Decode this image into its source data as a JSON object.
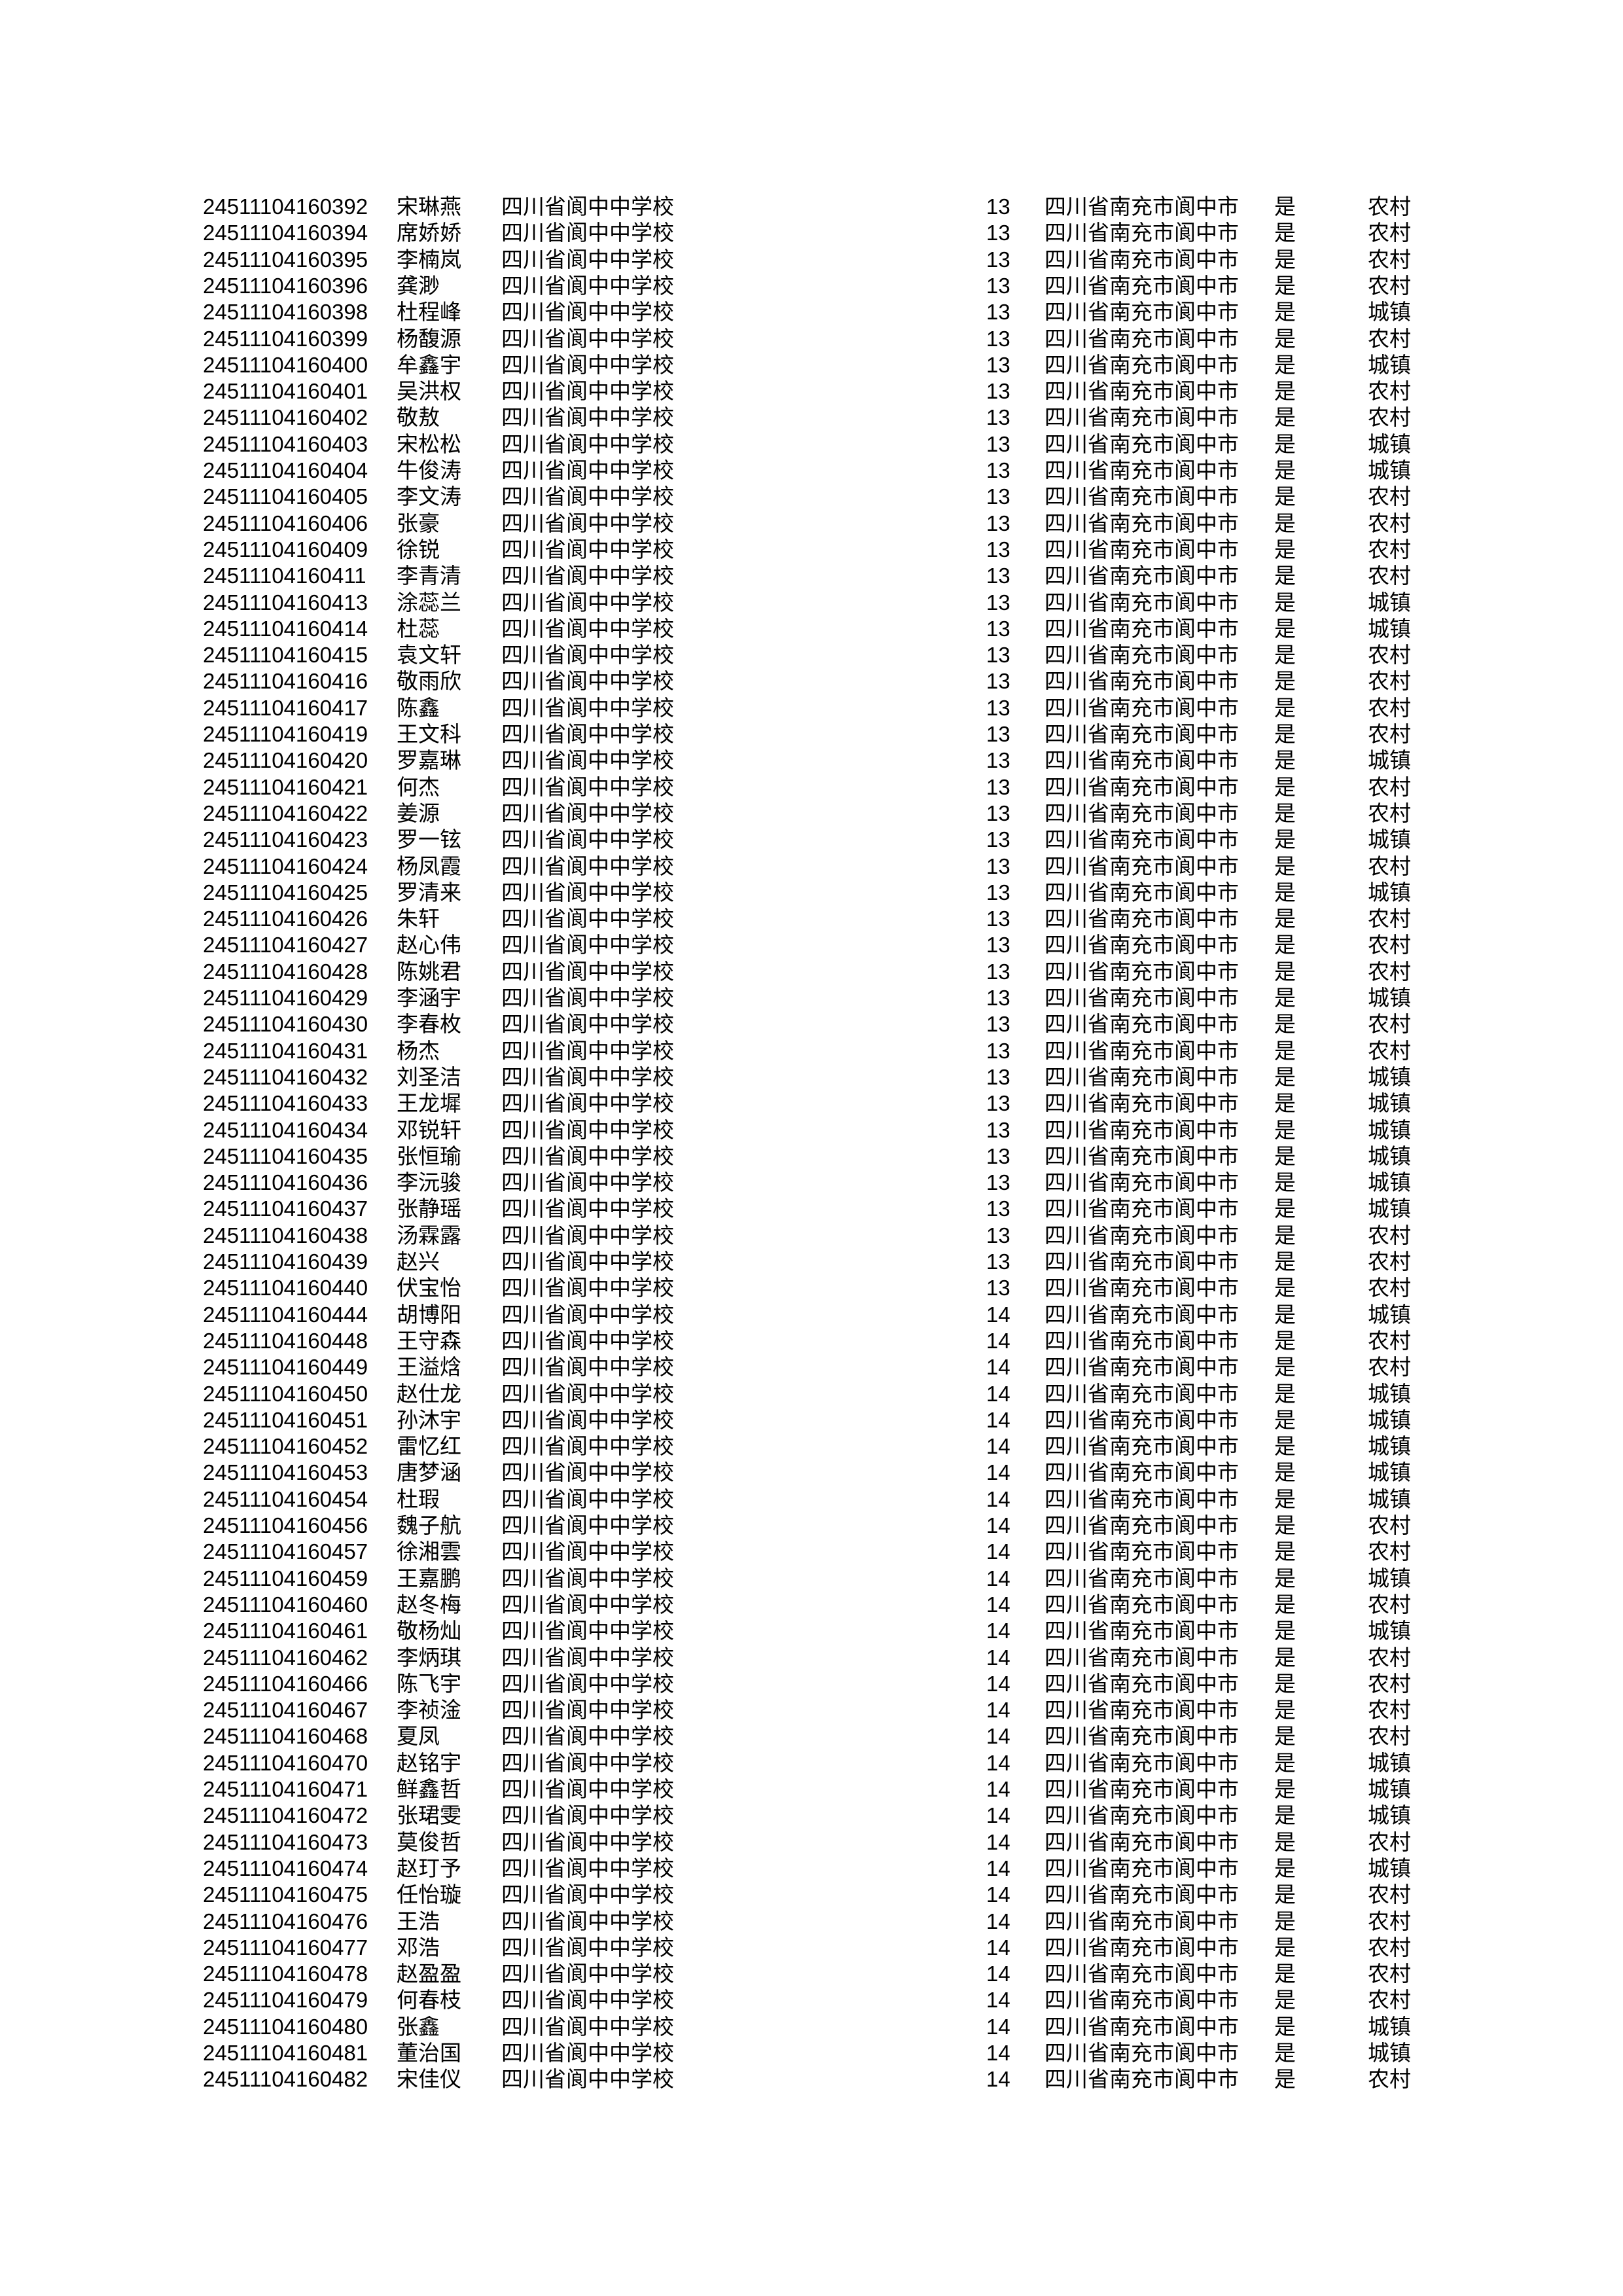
{
  "table": {
    "school": "四川省阆中中学校",
    "region": "四川省南充市阆中市",
    "flag": "是",
    "residence_values": {
      "rural": "农村",
      "urban": "城镇"
    },
    "rows": [
      {
        "id": "24511104160392",
        "name": "宋琳燕",
        "code": "13",
        "res": "农村"
      },
      {
        "id": "24511104160394",
        "name": "席娇娇",
        "code": "13",
        "res": "农村"
      },
      {
        "id": "24511104160395",
        "name": "李楠岚",
        "code": "13",
        "res": "农村"
      },
      {
        "id": "24511104160396",
        "name": "龚渺",
        "code": "13",
        "res": "农村"
      },
      {
        "id": "24511104160398",
        "name": "杜程峰",
        "code": "13",
        "res": "城镇"
      },
      {
        "id": "24511104160399",
        "name": "杨馥源",
        "code": "13",
        "res": "农村"
      },
      {
        "id": "24511104160400",
        "name": "牟鑫宇",
        "code": "13",
        "res": "城镇"
      },
      {
        "id": "24511104160401",
        "name": "吴洪权",
        "code": "13",
        "res": "农村"
      },
      {
        "id": "24511104160402",
        "name": "敬敖",
        "code": "13",
        "res": "农村"
      },
      {
        "id": "24511104160403",
        "name": "宋松松",
        "code": "13",
        "res": "城镇"
      },
      {
        "id": "24511104160404",
        "name": "牛俊涛",
        "code": "13",
        "res": "城镇"
      },
      {
        "id": "24511104160405",
        "name": "李文涛",
        "code": "13",
        "res": "农村"
      },
      {
        "id": "24511104160406",
        "name": "张豪",
        "code": "13",
        "res": "农村"
      },
      {
        "id": "24511104160409",
        "name": "徐锐",
        "code": "13",
        "res": "农村"
      },
      {
        "id": "24511104160411",
        "name": "李青清",
        "code": "13",
        "res": "农村"
      },
      {
        "id": "24511104160413",
        "name": "涂蕊兰",
        "code": "13",
        "res": "城镇"
      },
      {
        "id": "24511104160414",
        "name": "杜蕊",
        "code": "13",
        "res": "城镇"
      },
      {
        "id": "24511104160415",
        "name": "袁文轩",
        "code": "13",
        "res": "农村"
      },
      {
        "id": "24511104160416",
        "name": "敬雨欣",
        "code": "13",
        "res": "农村"
      },
      {
        "id": "24511104160417",
        "name": "陈鑫",
        "code": "13",
        "res": "农村"
      },
      {
        "id": "24511104160419",
        "name": "王文科",
        "code": "13",
        "res": "农村"
      },
      {
        "id": "24511104160420",
        "name": "罗嘉琳",
        "code": "13",
        "res": "城镇"
      },
      {
        "id": "24511104160421",
        "name": "何杰",
        "code": "13",
        "res": "农村"
      },
      {
        "id": "24511104160422",
        "name": "姜源",
        "code": "13",
        "res": "农村"
      },
      {
        "id": "24511104160423",
        "name": "罗一铉",
        "code": "13",
        "res": "城镇"
      },
      {
        "id": "24511104160424",
        "name": "杨凤霞",
        "code": "13",
        "res": "农村"
      },
      {
        "id": "24511104160425",
        "name": "罗清来",
        "code": "13",
        "res": "城镇"
      },
      {
        "id": "24511104160426",
        "name": "朱轩",
        "code": "13",
        "res": "农村"
      },
      {
        "id": "24511104160427",
        "name": "赵心伟",
        "code": "13",
        "res": "农村"
      },
      {
        "id": "24511104160428",
        "name": "陈姚君",
        "code": "13",
        "res": "农村"
      },
      {
        "id": "24511104160429",
        "name": "李涵宇",
        "code": "13",
        "res": "城镇"
      },
      {
        "id": "24511104160430",
        "name": "李春枚",
        "code": "13",
        "res": "农村"
      },
      {
        "id": "24511104160431",
        "name": "杨杰",
        "code": "13",
        "res": "农村"
      },
      {
        "id": "24511104160432",
        "name": "刘圣洁",
        "code": "13",
        "res": "城镇"
      },
      {
        "id": "24511104160433",
        "name": "王龙墀",
        "code": "13",
        "res": "城镇"
      },
      {
        "id": "24511104160434",
        "name": "邓锐轩",
        "code": "13",
        "res": "城镇"
      },
      {
        "id": "24511104160435",
        "name": "张恒瑜",
        "code": "13",
        "res": "城镇"
      },
      {
        "id": "24511104160436",
        "name": "李沅骏",
        "code": "13",
        "res": "城镇"
      },
      {
        "id": "24511104160437",
        "name": "张静瑶",
        "code": "13",
        "res": "城镇"
      },
      {
        "id": "24511104160438",
        "name": "汤霖露",
        "code": "13",
        "res": "农村"
      },
      {
        "id": "24511104160439",
        "name": "赵兴",
        "code": "13",
        "res": "农村"
      },
      {
        "id": "24511104160440",
        "name": "伏宝怡",
        "code": "13",
        "res": "农村"
      },
      {
        "id": "24511104160444",
        "name": "胡博阳",
        "code": "14",
        "res": "城镇"
      },
      {
        "id": "24511104160448",
        "name": "王守森",
        "code": "14",
        "res": "农村"
      },
      {
        "id": "24511104160449",
        "name": "王溢焓",
        "code": "14",
        "res": "农村"
      },
      {
        "id": "24511104160450",
        "name": "赵仕龙",
        "code": "14",
        "res": "城镇"
      },
      {
        "id": "24511104160451",
        "name": "孙沐宇",
        "code": "14",
        "res": "城镇"
      },
      {
        "id": "24511104160452",
        "name": "雷忆红",
        "code": "14",
        "res": "城镇"
      },
      {
        "id": "24511104160453",
        "name": "唐梦涵",
        "code": "14",
        "res": "城镇"
      },
      {
        "id": "24511104160454",
        "name": "杜瑕",
        "code": "14",
        "res": "城镇"
      },
      {
        "id": "24511104160456",
        "name": "魏子航",
        "code": "14",
        "res": "农村"
      },
      {
        "id": "24511104160457",
        "name": "徐湘雲",
        "code": "14",
        "res": "农村"
      },
      {
        "id": "24511104160459",
        "name": "王嘉鹏",
        "code": "14",
        "res": "城镇"
      },
      {
        "id": "24511104160460",
        "name": "赵冬梅",
        "code": "14",
        "res": "农村"
      },
      {
        "id": "24511104160461",
        "name": "敬杨灿",
        "code": "14",
        "res": "城镇"
      },
      {
        "id": "24511104160462",
        "name": "李炳琪",
        "code": "14",
        "res": "农村"
      },
      {
        "id": "24511104160466",
        "name": "陈飞宇",
        "code": "14",
        "res": "农村"
      },
      {
        "id": "24511104160467",
        "name": "李祯淦",
        "code": "14",
        "res": "农村"
      },
      {
        "id": "24511104160468",
        "name": "夏凤",
        "code": "14",
        "res": "农村"
      },
      {
        "id": "24511104160470",
        "name": "赵铭宇",
        "code": "14",
        "res": "城镇"
      },
      {
        "id": "24511104160471",
        "name": "鲜鑫哲",
        "code": "14",
        "res": "城镇"
      },
      {
        "id": "24511104160472",
        "name": "张珺雯",
        "code": "14",
        "res": "城镇"
      },
      {
        "id": "24511104160473",
        "name": "莫俊哲",
        "code": "14",
        "res": "农村"
      },
      {
        "id": "24511104160474",
        "name": "赵玎予",
        "code": "14",
        "res": "城镇"
      },
      {
        "id": "24511104160475",
        "name": "任怡璇",
        "code": "14",
        "res": "农村"
      },
      {
        "id": "24511104160476",
        "name": "王浩",
        "code": "14",
        "res": "农村"
      },
      {
        "id": "24511104160477",
        "name": "邓浩",
        "code": "14",
        "res": "农村"
      },
      {
        "id": "24511104160478",
        "name": "赵盈盈",
        "code": "14",
        "res": "农村"
      },
      {
        "id": "24511104160479",
        "name": "何春枝",
        "code": "14",
        "res": "农村"
      },
      {
        "id": "24511104160480",
        "name": "张鑫",
        "code": "14",
        "res": "城镇"
      },
      {
        "id": "24511104160481",
        "name": "董治国",
        "code": "14",
        "res": "城镇"
      },
      {
        "id": "24511104160482",
        "name": "宋佳仪",
        "code": "14",
        "res": "农村"
      }
    ]
  }
}
